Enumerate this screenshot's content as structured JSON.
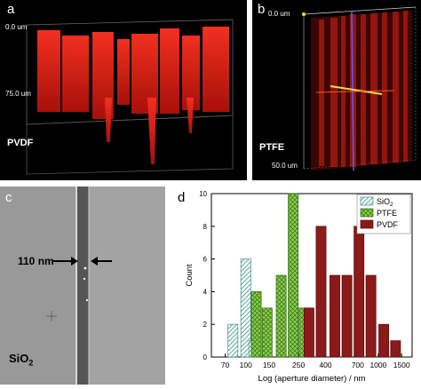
{
  "panels": {
    "a": {
      "label": "a",
      "material": "PVDF",
      "depth_top": "0.0 um",
      "depth_mid": "75.0 um"
    },
    "b": {
      "label": "b",
      "material": "PTFE",
      "depth_top": "0.0 um",
      "depth_bottom": "50.0 um"
    },
    "c": {
      "label": "c",
      "material_main": "SiO",
      "material_sub": "2",
      "measure": "110 nm"
    },
    "d": {
      "label": "d"
    }
  },
  "colors": {
    "sio2": "#8fc9c2",
    "ptfe": "#7ac142",
    "pvdf": "#8b1a1a",
    "fluor_red": "#ff2a1a"
  },
  "chart_data": {
    "type": "bar",
    "xlabel": "Log (aperture diameter) / nm",
    "ylabel": "Count",
    "x_scale": "log",
    "xlim": [
      55,
      1800
    ],
    "ylim": [
      0,
      10
    ],
    "xticks": [
      70,
      100,
      150,
      250,
      400,
      700,
      1000,
      1500
    ],
    "yticks": [
      0,
      2,
      4,
      6,
      8,
      10
    ],
    "legend_position": "top-right",
    "series": [
      {
        "name_main": "SiO",
        "name_sub": "2",
        "key": "sio2",
        "x": [
          80,
          100,
          115
        ],
        "values": [
          2,
          6,
          1
        ]
      },
      {
        "name": "PTFE",
        "key": "ptfe",
        "x": [
          120,
          145,
          185,
          228,
          275
        ],
        "values": [
          4,
          3,
          5,
          10,
          3
        ]
      },
      {
        "name": "PVDF",
        "key": "pvdf",
        "x": [
          300,
          370,
          470,
          580,
          715,
          880,
          1100,
          1350
        ],
        "values": [
          3,
          8,
          5,
          5,
          8,
          5,
          2,
          1
        ]
      }
    ]
  }
}
